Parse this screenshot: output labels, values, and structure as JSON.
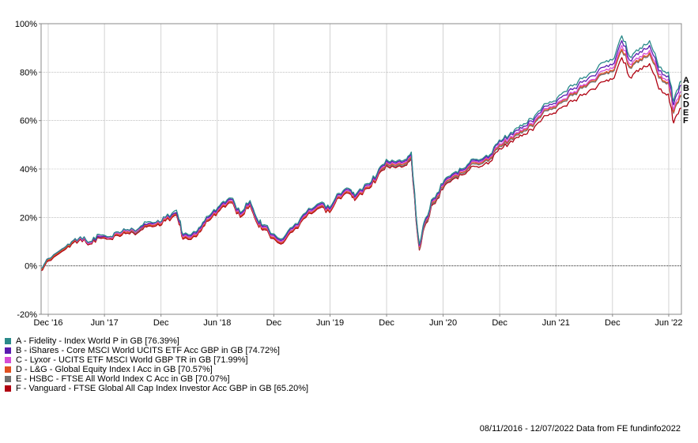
{
  "chart_data": {
    "type": "line",
    "ylim": [
      -20,
      100
    ],
    "y_ticks": [
      -20,
      0,
      20,
      40,
      60,
      80,
      100
    ],
    "y_tick_labels": [
      "-20%",
      "0%",
      "20%",
      "40%",
      "60%",
      "80%",
      "100%"
    ],
    "x_range": [
      "2016-11-08",
      "2022-07-12"
    ],
    "x_ticks": [
      {
        "date": "2016-12-01",
        "label": "Dec '16"
      },
      {
        "date": "2017-06-01",
        "label": "Jun '17"
      },
      {
        "date": "2017-12-01",
        "label": "Dec"
      },
      {
        "date": "2018-06-01",
        "label": "Jun '18"
      },
      {
        "date": "2018-12-01",
        "label": "Dec"
      },
      {
        "date": "2019-06-01",
        "label": "Jun '19"
      },
      {
        "date": "2019-12-01",
        "label": "Dec"
      },
      {
        "date": "2020-06-01",
        "label": "Jun '20"
      },
      {
        "date": "2020-12-01",
        "label": "Dec"
      },
      {
        "date": "2021-06-01",
        "label": "Jun '21"
      },
      {
        "date": "2021-12-01",
        "label": "Dec"
      },
      {
        "date": "2022-06-01",
        "label": "Jun '22"
      }
    ],
    "grid": true,
    "legend_position": "bottom-left",
    "dates": [
      "2016-11-08",
      "2016-12-01",
      "2017-01-15",
      "2017-02-15",
      "2017-03-15",
      "2017-04-15",
      "2017-05-15",
      "2017-06-15",
      "2017-07-15",
      "2017-08-15",
      "2017-09-15",
      "2017-10-15",
      "2017-11-15",
      "2017-12-15",
      "2018-01-20",
      "2018-02-10",
      "2018-03-25",
      "2018-04-15",
      "2018-05-15",
      "2018-06-15",
      "2018-07-15",
      "2018-08-15",
      "2018-09-15",
      "2018-10-10",
      "2018-10-30",
      "2018-12-24",
      "2019-01-31",
      "2019-03-15",
      "2019-04-30",
      "2019-05-31",
      "2019-06-30",
      "2019-07-31",
      "2019-08-20",
      "2019-09-30",
      "2019-10-31",
      "2019-11-30",
      "2019-12-31",
      "2020-01-31",
      "2020-02-19",
      "2020-03-16",
      "2020-03-31",
      "2020-04-30",
      "2020-05-31",
      "2020-06-30",
      "2020-07-31",
      "2020-08-31",
      "2020-09-30",
      "2020-10-31",
      "2020-11-30",
      "2020-12-31",
      "2021-01-31",
      "2021-02-28",
      "2021-03-31",
      "2021-04-30",
      "2021-05-31",
      "2021-06-30",
      "2021-07-31",
      "2021-08-31",
      "2021-09-30",
      "2021-10-31",
      "2021-11-30",
      "2021-12-31",
      "2022-01-31",
      "2022-02-28",
      "2022-03-31",
      "2022-04-30",
      "2022-05-31",
      "2022-06-17",
      "2022-07-12"
    ],
    "series": [
      {
        "label": "A",
        "name": "A - Fidelity - Index World P in GB [76.39%]",
        "color": "#2a8a8a",
        "final": 76.39,
        "values": [
          -1,
          3,
          7,
          10,
          12,
          10,
          13,
          12,
          14,
          15,
          15,
          18,
          18,
          20,
          23,
          13,
          14,
          18,
          22,
          26,
          28,
          22,
          27,
          19,
          17,
          11,
          16,
          22,
          26,
          24,
          30,
          32,
          29,
          34,
          38,
          44,
          43,
          44,
          47,
          9,
          18,
          28,
          34,
          38,
          40,
          44,
          44,
          46,
          52,
          54,
          57,
          59,
          63,
          67,
          68,
          72,
          75,
          78,
          80,
          84,
          85,
          95,
          86,
          90,
          93,
          82,
          80,
          68,
          76.39
        ]
      },
      {
        "label": "B",
        "name": "B - iShares - Core MSCI World UCITS ETF Acc GBP in GB [74.72%]",
        "color": "#5a1ab0",
        "final": 74.72,
        "values": [
          -1,
          3,
          7,
          10,
          12,
          10,
          12,
          12,
          14,
          15,
          15,
          17,
          18,
          20,
          22,
          12.5,
          13.5,
          17.5,
          21.5,
          25.5,
          27.5,
          21.5,
          26.5,
          18.5,
          16.5,
          10.5,
          15.5,
          21.5,
          25.5,
          23.5,
          29.5,
          31.5,
          28.5,
          33.5,
          37.5,
          43.5,
          42.5,
          43.5,
          46.5,
          8.5,
          17.5,
          27.5,
          33.5,
          37.5,
          39.5,
          43.5,
          43.5,
          45.5,
          51.5,
          53.5,
          56,
          58,
          62,
          66,
          67,
          70.5,
          73.5,
          76.5,
          78.5,
          82,
          83,
          93,
          84.5,
          88.5,
          91,
          80.5,
          78.5,
          66.5,
          74.72
        ]
      },
      {
        "label": "C",
        "name": "C - Lyxor - UCITS ETF MSCI World GBP TR in GB [71.99%]",
        "color": "#d64dd6",
        "final": 71.99,
        "values": [
          -1,
          3,
          7,
          10,
          11.5,
          9.5,
          12.5,
          11.5,
          13.5,
          14.5,
          14.5,
          17,
          17.5,
          19.5,
          22,
          12,
          13,
          17,
          21,
          25,
          27,
          21,
          26,
          18,
          16,
          10,
          15,
          21,
          25,
          23,
          29,
          31,
          28,
          33,
          37,
          43,
          42,
          43,
          46,
          8,
          17,
          27,
          33,
          37,
          39,
          43,
          43,
          45,
          50.5,
          52.5,
          55,
          57,
          61,
          65,
          66,
          69,
          72,
          75,
          77,
          80.5,
          81.5,
          91,
          83,
          86.5,
          89,
          79,
          77,
          64.5,
          71.99
        ]
      },
      {
        "label": "D",
        "name": "D - L&G - Global Equity Index I Acc in GB [70.57%]",
        "color": "#e05020",
        "final": 70.57,
        "values": [
          -1.5,
          2.5,
          6.5,
          9.5,
          11.5,
          9.5,
          12,
          11.5,
          13,
          14,
          14.5,
          16.5,
          17,
          19,
          21.5,
          11.5,
          12.5,
          16.5,
          20.5,
          24.5,
          26.5,
          20.5,
          25.5,
          17.5,
          15.5,
          9.5,
          14.5,
          20.5,
          24.5,
          22.5,
          28.5,
          30.5,
          27.5,
          32.5,
          36.5,
          42.5,
          41.5,
          42.5,
          45.5,
          7.5,
          16.5,
          26.5,
          32.5,
          36.5,
          38.5,
          42.5,
          42.5,
          44.5,
          50,
          52,
          54.5,
          56.5,
          60.5,
          64.5,
          65.5,
          68.5,
          71.5,
          74.5,
          76.5,
          79.5,
          80.5,
          89.5,
          82,
          85.5,
          88,
          78,
          76,
          63.5,
          70.57
        ]
      },
      {
        "label": "E",
        "name": "E - HSBC - FTSE All World Index C Acc in GB [70.07%]",
        "color": "#707070",
        "final": 70.07,
        "values": [
          -1.5,
          2.5,
          6.5,
          9.5,
          11.5,
          9.5,
          12,
          11.5,
          13,
          14,
          14,
          16.5,
          17,
          19,
          21.5,
          11.5,
          12.5,
          16.5,
          20.5,
          24.5,
          26.5,
          20.5,
          25.5,
          17.5,
          15.5,
          9.5,
          14.5,
          20.5,
          24.5,
          22.5,
          28.5,
          30.5,
          27.5,
          32.5,
          36.5,
          42,
          41,
          42,
          45,
          7,
          16,
          26,
          32,
          36,
          38,
          42,
          42,
          44,
          49.5,
          51.5,
          54,
          56,
          60,
          64,
          65,
          68,
          71,
          74,
          76,
          79,
          80,
          89,
          81.5,
          85,
          87.5,
          77.5,
          75.5,
          63,
          70.07
        ]
      },
      {
        "label": "F",
        "name": "F - Vanguard - FTSE Global All Cap Index Investor Acc GBP in GB [65.20%]",
        "color": "#b00010",
        "final": 65.2,
        "values": [
          -2,
          2,
          6,
          9,
          11,
          9,
          11.5,
          11,
          12.5,
          13.5,
          13.5,
          16,
          16.5,
          18.5,
          21,
          11,
          12,
          16,
          20,
          24,
          26,
          20,
          25,
          17,
          15,
          9,
          14,
          20,
          24,
          22,
          28,
          30,
          27,
          32,
          36,
          41.5,
          40.5,
          41.5,
          44.5,
          6.5,
          15.5,
          25.5,
          31.5,
          35.5,
          37.5,
          41,
          41,
          43,
          48.5,
          50.5,
          53,
          54.5,
          58.5,
          62,
          63,
          66,
          68.5,
          71,
          73,
          76,
          77,
          86,
          77.5,
          81.5,
          83.5,
          73,
          71,
          59,
          65.2
        ]
      }
    ]
  },
  "footer": {
    "source_text": "08/11/2016 - 12/07/2022 Data from FE fundinfo2022"
  }
}
